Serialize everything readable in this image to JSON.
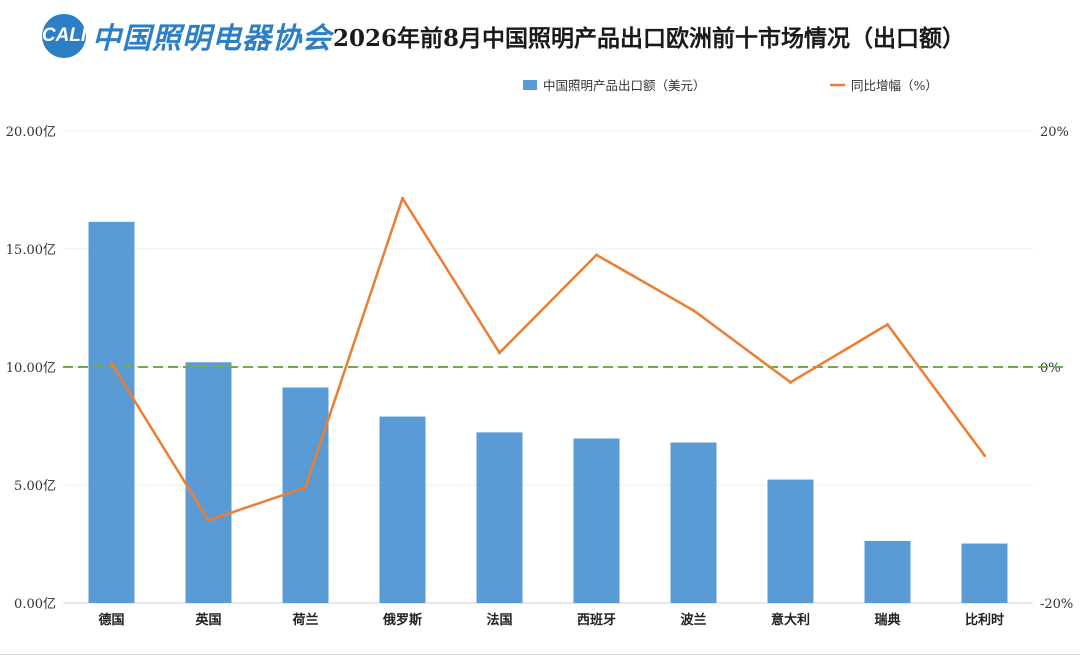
{
  "header": {
    "logo_mark": "CALI",
    "logo_text": "中国照明电器协会",
    "title": "2026年前8月中国照明产品出口欧洲前十市场情况（出口额）"
  },
  "colors": {
    "bar": "#5b9bd5",
    "line": "#ed7d31",
    "reference_line": "#70ad47",
    "brand": "#2c7fc4"
  },
  "chart_data": {
    "type": "bar",
    "categories": [
      "德国",
      "英国",
      "荷兰",
      "俄罗斯",
      "法国",
      "西班牙",
      "波兰",
      "意大利",
      "瑞典",
      "比利时"
    ],
    "series": [
      {
        "name": "中国照明产品出口额（美元）",
        "type": "bar",
        "axis": "left",
        "values": [
          16.15,
          10.2,
          9.13,
          7.9,
          7.23,
          6.97,
          6.8,
          5.23,
          2.63,
          2.52
        ]
      },
      {
        "name": "同比增幅（%）",
        "type": "line",
        "axis": "right",
        "values": [
          0.3,
          -13.0,
          -10.2,
          14.3,
          1.2,
          9.5,
          4.8,
          -1.3,
          3.6,
          -7.5
        ]
      }
    ],
    "y_left": {
      "ticks": [
        "0.00亿",
        "5.00亿",
        "10.00亿",
        "15.00亿",
        "20.00亿"
      ],
      "min": 0,
      "max": 20
    },
    "y_right": {
      "ticks": [
        "-20%",
        "0%",
        "20%"
      ],
      "min": -20,
      "max": 20
    },
    "reference_line": {
      "axis": "right",
      "value": 0,
      "style": "dashed"
    },
    "legend_position": "top",
    "grid": true
  }
}
